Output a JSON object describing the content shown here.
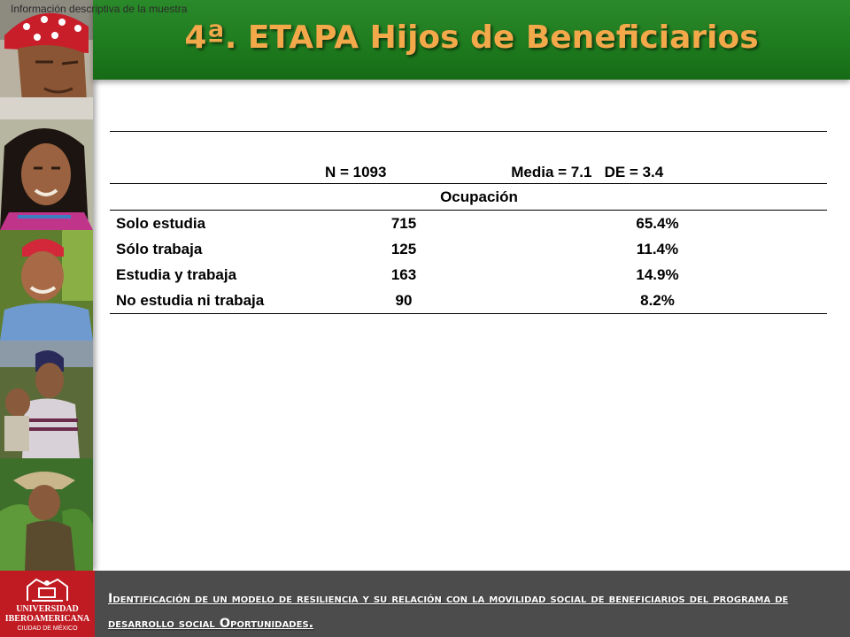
{
  "caption": "Información descriptiva de la muestra",
  "title": "4ª. ETAPA Hijos de Beneficiarios",
  "stats": {
    "n": "N = 1093",
    "media": "Media = 7.1",
    "de": "DE = 3.4"
  },
  "table": {
    "group_header": "Ocupación",
    "rows": [
      {
        "label": "Solo estudia",
        "count": "715",
        "percent": "65.4%"
      },
      {
        "label": "Sólo trabaja",
        "count": "125",
        "percent": "11.4%"
      },
      {
        "label": "Estudia y trabaja",
        "count": "163",
        "percent": "14.9%"
      },
      {
        "label": "No estudia ni trabaja",
        "count": "90",
        "percent": "8.2%"
      }
    ]
  },
  "footer": {
    "logo_name": "UNIVERSIDAD IBEROAMERICANA",
    "logo_city": "CIUDAD DE MÉXICO",
    "text": "Identificación de un modelo de resiliencia y su relación con la movilidad social de beneficiarios del programa de desarrollo social Oportunidades."
  },
  "colors": {
    "header_green": "#1e7a1e",
    "title_orange": "#f3a94a",
    "footer_gray": "#4c4c4c",
    "logo_red": "#c01b22"
  }
}
